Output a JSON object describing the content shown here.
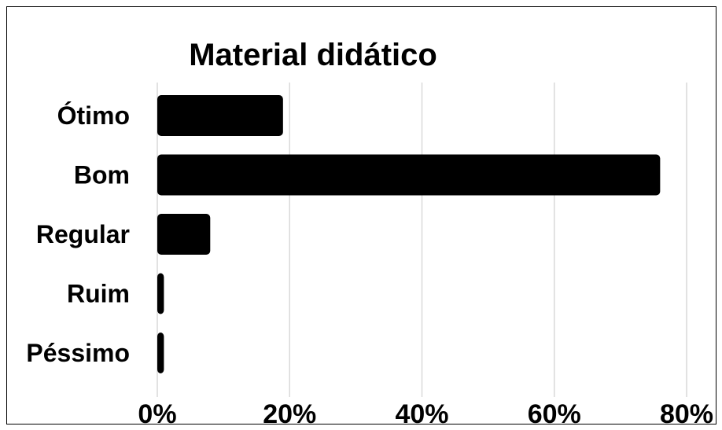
{
  "chart_data": {
    "type": "bar",
    "orientation": "horizontal",
    "title": "Material didático",
    "categories": [
      "Ótimo",
      "Bom",
      "Regular",
      "Ruim",
      "Péssimo"
    ],
    "values": [
      0.19,
      0.76,
      0.08,
      0.01,
      0.01
    ],
    "xlim": [
      0,
      0.8
    ],
    "xticks": [
      0,
      0.2,
      0.4,
      0.6,
      0.8
    ],
    "xtick_labels": [
      "0%",
      "20%",
      "40%",
      "60%",
      "80%"
    ],
    "xlabel": "",
    "ylabel": "",
    "grid": "vertical",
    "legend": "none",
    "colors": {
      "bar": "#000000",
      "grid": "#d9d9d9",
      "background": "#ffffff",
      "border": "#000000"
    }
  }
}
